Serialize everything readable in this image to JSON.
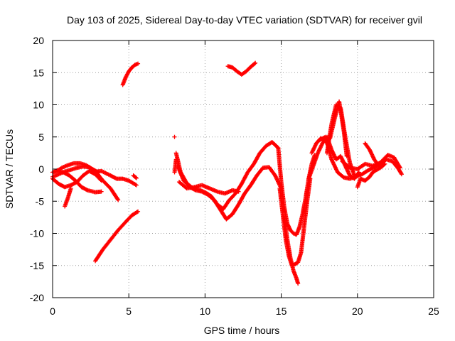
{
  "chart_data": {
    "type": "scatter",
    "title": "Day 103 of 2025, Sidereal Day-to-day VTEC variation (SDTVAR) for receiver gvil",
    "xlabel": "GPS time / hours",
    "ylabel": "SDTVAR / TECUs",
    "xlim": [
      0,
      25
    ],
    "ylim": [
      -20,
      20
    ],
    "xticks": [
      0,
      5,
      10,
      15,
      20,
      25
    ],
    "yticks": [
      -20,
      -15,
      -10,
      -5,
      0,
      5,
      10,
      15,
      20
    ],
    "xtick_labels": [
      "0",
      "5",
      "10",
      "15",
      "20",
      "25"
    ],
    "ytick_labels": [
      "-20",
      "-15",
      "-10",
      "-5",
      "0",
      "5",
      "10",
      "15",
      "20"
    ],
    "grid": true,
    "marker": "plus",
    "color": "#ff0000",
    "series": [
      {
        "x": [
          0.0,
          0.3,
          0.6,
          1.0,
          1.4,
          1.8,
          2.2,
          2.6,
          3.0
        ],
        "y": [
          -0.5,
          -0.3,
          0.2,
          0.6,
          0.9,
          0.9,
          0.6,
          0.0,
          -0.5
        ]
      },
      {
        "x": [
          0.0,
          0.4,
          0.8,
          1.2,
          1.6,
          2.0,
          2.4,
          2.8,
          3.3,
          3.8,
          4.3
        ],
        "y": [
          -1.2,
          -0.8,
          -0.4,
          -0.1,
          0.2,
          0.4,
          0.3,
          -0.3,
          -1.8,
          -3.0,
          -4.8
        ]
      },
      {
        "x": [
          0.0,
          0.4,
          0.8,
          1.2,
          1.6,
          2.0,
          2.4,
          2.8,
          3.2
        ],
        "y": [
          -1.5,
          -2.3,
          -2.8,
          -2.5,
          -2.0,
          -1.0,
          -0.3,
          -0.8,
          -1.8
        ]
      },
      {
        "x": [
          0.3,
          0.7,
          1.1,
          1.5,
          1.9,
          2.3,
          2.8,
          3.2
        ],
        "y": [
          -0.2,
          -0.5,
          -1.0,
          -1.8,
          -2.8,
          -3.3,
          -3.6,
          -3.5
        ]
      },
      {
        "x": [
          0.8,
          1.0,
          1.2
        ],
        "y": [
          -5.8,
          -4.5,
          -3.0
        ]
      },
      {
        "x": [
          2.6,
          3.2,
          3.8,
          4.2,
          4.6,
          5.0,
          5.5
        ],
        "y": [
          -0.5,
          -0.3,
          -1.0,
          -1.5,
          -1.5,
          -1.8,
          -2.5
        ]
      },
      {
        "x": [
          5.3,
          5.5
        ],
        "y": [
          -1.0,
          -1.4
        ]
      },
      {
        "x": [
          2.8,
          3.3,
          3.8,
          4.3,
          4.8,
          5.2,
          5.6
        ],
        "y": [
          -14.3,
          -12.5,
          -11.0,
          -9.5,
          -8.2,
          -7.2,
          -6.6
        ]
      },
      {
        "x": [
          4.6,
          4.8,
          5.0,
          5.2,
          5.4,
          5.6
        ],
        "y": [
          13.1,
          14.3,
          15.2,
          15.8,
          16.2,
          16.4
        ]
      },
      {
        "x": [
          8.0
        ],
        "y": [
          5.0
        ]
      },
      {
        "x": [
          8.0,
          8.05,
          8.1
        ],
        "y": [
          -0.5,
          0.5,
          1.5
        ]
      },
      {
        "x": [
          8.1,
          8.4,
          8.8,
          9.2,
          9.6,
          10.0,
          10.4,
          10.8,
          11.2,
          11.6,
          12.0,
          12.4,
          12.8,
          13.2,
          13.6,
          14.0,
          14.4,
          14.8
        ],
        "y": [
          2.5,
          -0.5,
          -2.2,
          -3.0,
          -3.2,
          -3.6,
          -4.2,
          -5.5,
          -6.2,
          -4.8,
          -3.8,
          -2.3,
          -0.5,
          0.8,
          2.5,
          3.6,
          4.2,
          3.3
        ]
      },
      {
        "x": [
          8.2,
          8.6,
          9.0,
          9.4,
          9.8,
          10.2,
          10.6,
          11.0,
          11.4,
          11.8,
          12.2,
          12.6,
          13.0,
          13.4,
          13.8,
          14.2,
          14.6,
          15.0
        ],
        "y": [
          0.5,
          -1.8,
          -2.8,
          -3.3,
          -3.5,
          -4.0,
          -4.8,
          -6.3,
          -7.8,
          -7.0,
          -5.5,
          -3.8,
          -2.5,
          -1.0,
          0.2,
          0.3,
          -1.0,
          -3.0
        ]
      },
      {
        "x": [
          8.3,
          8.8,
          9.3,
          9.8,
          10.3,
          10.8,
          11.3,
          11.8,
          12.2
        ],
        "y": [
          -2.0,
          -3.0,
          -2.8,
          -2.5,
          -3.0,
          -3.5,
          -3.8,
          -3.3,
          -3.5
        ]
      },
      {
        "x": [
          11.5,
          11.8,
          12.1,
          12.4,
          12.7,
          13.0,
          13.3
        ],
        "y": [
          16.0,
          15.8,
          15.2,
          14.7,
          15.2,
          15.9,
          16.5
        ]
      },
      {
        "x": [
          14.8,
          15.0,
          15.2,
          15.4,
          15.6,
          15.8,
          16.0,
          16.2,
          16.4,
          16.6,
          16.8,
          17.0,
          17.2
        ],
        "y": [
          3.3,
          -2.0,
          -6.0,
          -8.5,
          -9.5,
          -10.0,
          -10.2,
          -9.0,
          -7.0,
          -4.5,
          -1.5,
          0.8,
          2.2
        ]
      },
      {
        "x": [
          14.9,
          15.1,
          15.3,
          15.5,
          15.7,
          15.9,
          16.1,
          16.3,
          16.5,
          16.7,
          16.9
        ],
        "y": [
          -3.0,
          -7.0,
          -11.0,
          -13.5,
          -15.0,
          -14.8,
          -14.5,
          -13.0,
          -9.0,
          -5.0,
          -1.5
        ]
      },
      {
        "x": [
          15.2,
          15.4,
          15.6,
          15.8,
          16.0,
          16.1
        ],
        "y": [
          -7.5,
          -11.0,
          -13.8,
          -15.8,
          -17.0,
          -17.8
        ]
      },
      {
        "x": [
          17.0,
          17.3,
          17.6,
          17.9,
          18.2,
          18.5,
          18.8,
          19.1,
          19.3
        ],
        "y": [
          2.5,
          4.0,
          4.8,
          4.3,
          4.8,
          7.8,
          10.5,
          6.0,
          2.0
        ]
      },
      {
        "x": [
          16.8,
          17.1,
          17.4,
          17.7,
          18.0,
          18.3,
          18.6,
          18.9,
          19.2,
          19.5,
          19.8,
          20.1
        ],
        "y": [
          -1.5,
          0.5,
          2.5,
          4.0,
          5.0,
          3.0,
          1.5,
          2.0,
          0.5,
          -1.0,
          -1.5,
          -0.5
        ]
      },
      {
        "x": [
          18.0,
          18.3,
          18.6,
          18.9,
          19.2,
          19.5,
          19.8
        ],
        "y": [
          2.5,
          7.0,
          10.0,
          9.5,
          5.0,
          1.0,
          -1.0
        ]
      },
      {
        "x": [
          17.5,
          17.9,
          18.3,
          18.7,
          19.1,
          19.5,
          19.9,
          20.3,
          20.7,
          21.1,
          21.5,
          21.9,
          22.3,
          22.7,
          22.9
        ],
        "y": [
          4.5,
          5.0,
          1.5,
          -0.5,
          -1.3,
          -1.5,
          -1.2,
          -0.8,
          -0.2,
          0.3,
          0.8,
          1.5,
          1.2,
          0.0,
          -0.8
        ]
      },
      {
        "x": [
          19.0,
          19.5,
          20.0,
          20.5,
          21.0,
          21.5,
          22.0,
          22.4,
          22.8
        ],
        "y": [
          1.2,
          0.2,
          0.0,
          0.8,
          0.5,
          1.0,
          2.2,
          1.8,
          0.2
        ]
      },
      {
        "x": [
          20.0,
          20.2,
          20.5,
          20.8,
          21.0,
          21.2,
          21.5,
          21.8
        ],
        "y": [
          -2.8,
          -1.5,
          -1.8,
          -1.2,
          -0.5,
          -0.2,
          0.2,
          0.8
        ]
      },
      {
        "x": [
          20.5,
          20.8,
          21.1,
          21.4
        ],
        "y": [
          4.0,
          3.0,
          1.5,
          0.5
        ]
      }
    ]
  }
}
